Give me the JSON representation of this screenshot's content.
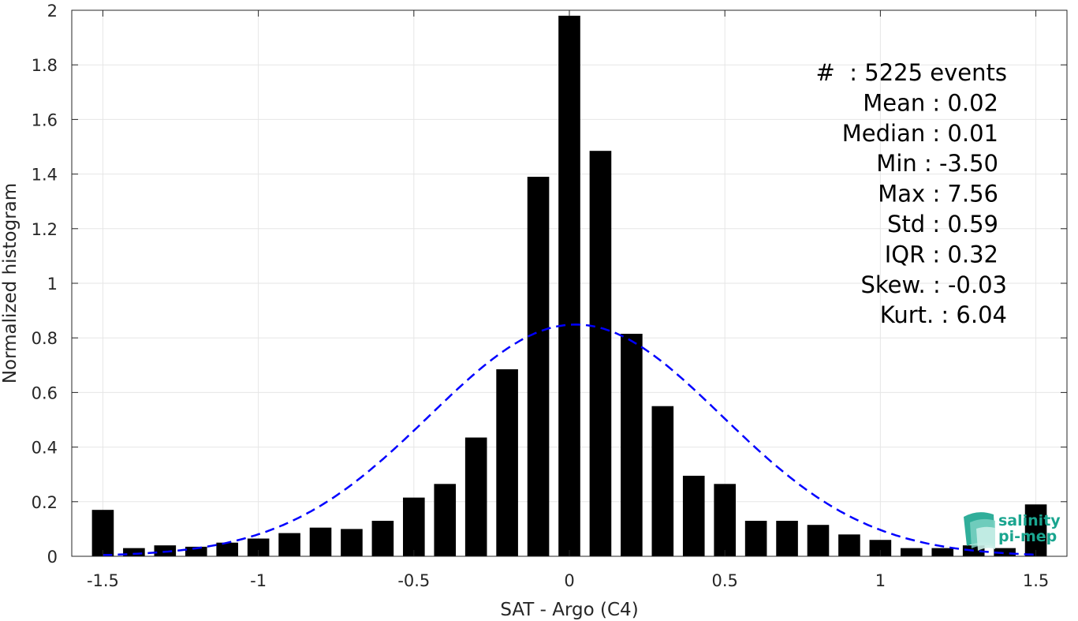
{
  "chart_data": {
    "type": "bar",
    "xlabel": "SAT - Argo (C4)",
    "ylabel": "Normalized histogram",
    "xlim": [
      -1.6,
      1.6
    ],
    "ylim": [
      0,
      2
    ],
    "grid": true,
    "x_ticks": [
      -1.5,
      -1,
      -0.5,
      0,
      0.5,
      1,
      1.5
    ],
    "x_tick_labels": [
      "-1.5",
      "-1",
      "-0.5",
      "0",
      "0.5",
      "1",
      "1.5"
    ],
    "y_ticks": [
      0,
      0.2,
      0.4,
      0.6,
      0.8,
      1,
      1.2,
      1.4,
      1.6,
      1.8,
      2
    ],
    "y_tick_labels": [
      "0",
      "0.2",
      "0.4",
      "0.6",
      "0.8",
      "1",
      "1.2",
      "1.4",
      "1.6",
      "1.8",
      "2"
    ],
    "bar_color": "#000000",
    "bar_width": 0.07,
    "series": [
      {
        "x": [
          -1.5,
          -1.4,
          -1.3,
          -1.2,
          -1.1,
          -1.0,
          -0.9,
          -0.8,
          -0.7,
          -0.6,
          -0.5,
          -0.4,
          -0.3,
          -0.2,
          -0.1,
          0.0,
          0.1,
          0.2,
          0.3,
          0.4,
          0.5,
          0.6,
          0.7,
          0.8,
          0.9,
          1.0,
          1.1,
          1.2,
          1.3,
          1.4,
          1.5
        ],
        "values": [
          0.17,
          0.03,
          0.04,
          0.035,
          0.05,
          0.065,
          0.085,
          0.105,
          0.1,
          0.13,
          0.215,
          0.265,
          0.435,
          0.685,
          1.39,
          1.98,
          1.485,
          0.815,
          0.55,
          0.295,
          0.265,
          0.13,
          0.13,
          0.115,
          0.08,
          0.06,
          0.03,
          0.03,
          0.04,
          0.03,
          0.19
        ]
      }
    ],
    "fit": {
      "type": "normal",
      "mean": 0.02,
      "std": 0.47,
      "color": "#0000ff",
      "dash": true
    },
    "annotations": [
      {
        "label": "#  : 5225 events",
        "align": "end-wide"
      },
      {
        "label": "Mean : 0.02",
        "align": "end"
      },
      {
        "label": "Median : 0.01",
        "align": "end"
      },
      {
        "label": "Min : -3.50",
        "align": "end"
      },
      {
        "label": "Max : 7.56",
        "align": "end"
      },
      {
        "label": "Std : 0.59",
        "align": "end"
      },
      {
        "label": "IQR : 0.32",
        "align": "end"
      },
      {
        "label": "Skew. : -0.03",
        "align": "end-wide"
      },
      {
        "label": "Kurt. : 6.04",
        "align": "end-wide"
      }
    ]
  },
  "logo": {
    "line1": "salinity",
    "line2": "pi-mep",
    "color": "#1aa58f"
  }
}
